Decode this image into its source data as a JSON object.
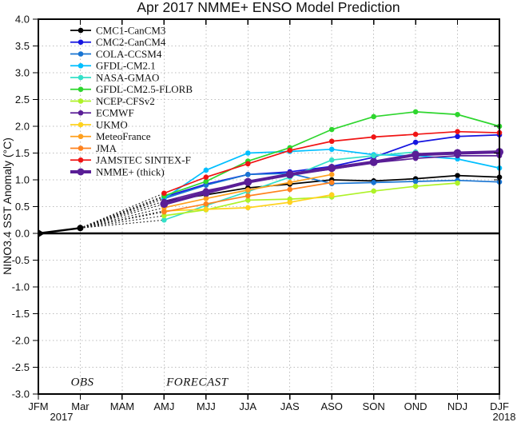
{
  "window": {
    "title": "Apr 2017 NMME+ ENSO Model Prediction"
  },
  "chart_data": {
    "type": "line",
    "title": "Apr 2017 NMME+ ENSO Model Prediction",
    "xlabel": "",
    "ylabel": "NINO3.4 SST Anomaly (°C)",
    "ylim": [
      -3.0,
      4.0
    ],
    "ytick_labels": [
      "4.0",
      "3.5",
      "3.0",
      "2.5",
      "2.0",
      "1.5",
      "1.0",
      "0.5",
      "0.0",
      "-0.5",
      "-1.0",
      "-1.5",
      "-2.0",
      "-2.5",
      "-3.0"
    ],
    "x_categories": [
      "JFM",
      "Mar",
      "MAM",
      "AMJ",
      "MJJ",
      "JJA",
      "JAS",
      "ASO",
      "SON",
      "OND",
      "NDJ",
      "DJF"
    ],
    "year_left": "2017",
    "year_right": "2018",
    "grid": true,
    "legend_position": "top-left",
    "annotations": [
      {
        "text": "OBS",
        "xi": 1.05,
        "y": -2.84
      },
      {
        "text": "FORECAST",
        "xi": 3.79,
        "y": -2.84
      }
    ],
    "obs": {
      "label": "OBS",
      "color": "#000000",
      "xi": [
        0,
        1
      ],
      "values": [
        0.0,
        0.1
      ]
    },
    "forecast_start_xi": 3,
    "forecast_categories": [
      "AMJ",
      "MJJ",
      "JJA",
      "JAS",
      "ASO",
      "SON",
      "OND",
      "NDJ",
      "DJF"
    ],
    "series": [
      {
        "name": "CMC1-CanCM3",
        "color": "#000000",
        "thick": false,
        "values": [
          0.6,
          0.72,
          0.85,
          0.92,
          1.0,
          0.98,
          1.02,
          1.08,
          1.05
        ]
      },
      {
        "name": "CMC2-CanCM4",
        "color": "#1515e0",
        "thick": false,
        "values": [
          0.68,
          0.92,
          1.1,
          1.15,
          1.25,
          1.42,
          1.7,
          1.81,
          1.84
        ]
      },
      {
        "name": "COLA-CCSM4",
        "color": "#1874d2",
        "thick": false,
        "values": [
          0.65,
          0.9,
          1.1,
          1.12,
          0.93,
          0.95,
          0.97,
          0.99,
          0.96
        ]
      },
      {
        "name": "GFDL-CM2.1",
        "color": "#00bfff",
        "thick": false,
        "values": [
          0.65,
          1.18,
          1.5,
          1.53,
          1.57,
          1.47,
          1.45,
          1.39,
          1.22
        ]
      },
      {
        "name": "NASA-GMAO",
        "color": "#35e0c8",
        "thick": false,
        "values": [
          0.25,
          0.52,
          0.78,
          1.05,
          1.37,
          1.45,
          1.52,
          null,
          null
        ]
      },
      {
        "name": "GFDL-CM2.5-FLORB",
        "color": "#2ed62e",
        "thick": false,
        "values": [
          0.7,
          0.97,
          1.35,
          1.6,
          1.94,
          2.18,
          2.27,
          2.22,
          2.0
        ]
      },
      {
        "name": "NCEP-CFSv2",
        "color": "#aef228",
        "thick": false,
        "values": [
          0.33,
          0.44,
          0.62,
          0.64,
          0.68,
          0.79,
          0.88,
          0.94,
          null
        ]
      },
      {
        "name": "ECMWF",
        "color": "#5a1e96",
        "thick": false,
        "values": [
          0.6,
          0.8,
          0.95,
          1.1,
          1.2,
          1.32,
          1.4,
          1.45,
          1.45
        ]
      },
      {
        "name": "UKMO",
        "color": "#ffd21e",
        "thick": false,
        "values": [
          0.42,
          0.45,
          0.48,
          0.58,
          0.72,
          null,
          null,
          null,
          null
        ]
      },
      {
        "name": "MeteoFrance",
        "color": "#ffa01e",
        "thick": false,
        "values": [
          0.48,
          0.65,
          0.81,
          0.95,
          1.1,
          null,
          null,
          null,
          null
        ]
      },
      {
        "name": "JMA",
        "color": "#ff821e",
        "thick": false,
        "values": [
          0.4,
          0.55,
          0.7,
          0.82,
          0.95,
          null,
          null,
          null,
          null
        ]
      },
      {
        "name": "JAMSTEC SINTEX-F",
        "color": "#f01414",
        "thick": false,
        "values": [
          0.75,
          1.05,
          1.3,
          1.55,
          1.72,
          1.8,
          1.85,
          1.9,
          1.88
        ]
      },
      {
        "name": "NMME+ (thick)",
        "color": "#5a1e96",
        "thick": true,
        "values": [
          0.55,
          0.76,
          0.96,
          1.1,
          1.22,
          1.33,
          1.47,
          1.5,
          1.52
        ]
      }
    ],
    "colors": {
      "grid": "#bdbdbd",
      "frame": "#000000",
      "zero_line": "#000000",
      "fan_dotted": "#1a1a1a"
    }
  }
}
